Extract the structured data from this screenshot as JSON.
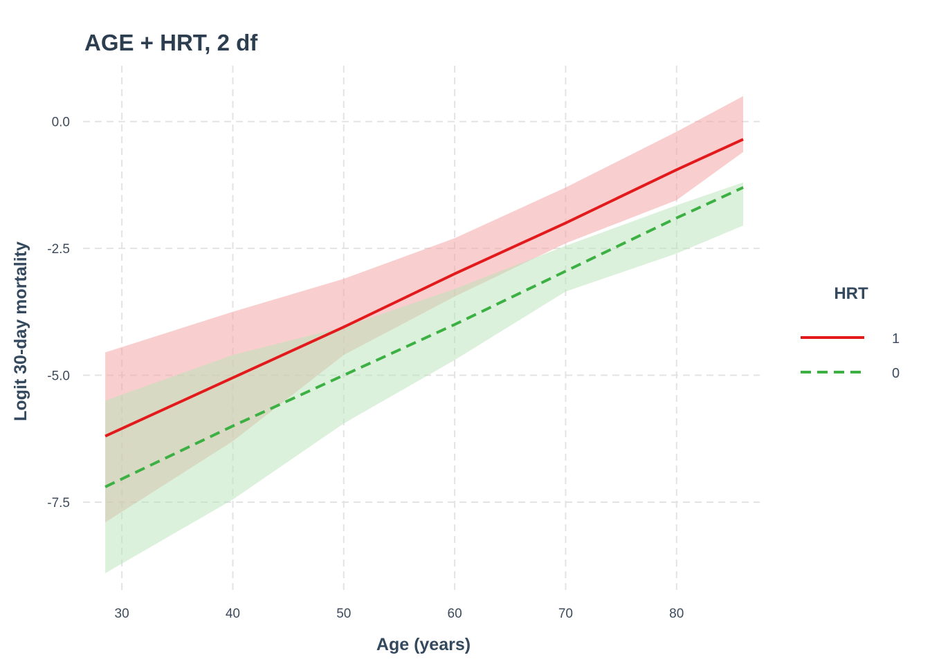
{
  "chart_data": {
    "type": "line",
    "title": "AGE + HRT, 2 df",
    "xlabel": "Age (years)",
    "ylabel": "Logit 30-day mortality",
    "xlim": [
      26.5,
      87.5
    ],
    "ylim": [
      -9.3,
      1.1
    ],
    "xticks": [
      30,
      40,
      50,
      60,
      70,
      80
    ],
    "xtick_labels": [
      "30",
      "40",
      "50",
      "60",
      "70",
      "80"
    ],
    "yticks": [
      0.0,
      -2.5,
      -5.0,
      -7.5
    ],
    "ytick_labels": [
      "0.0",
      "-2.5",
      "-5.0",
      "-7.5"
    ],
    "grid": true,
    "legend": {
      "title": "HRT",
      "position": "right"
    },
    "series": [
      {
        "name": "1",
        "color": "#e31a1c",
        "band_color": "#f4a6a6",
        "linestyle": "solid",
        "x": [
          28.5,
          40,
          50,
          60,
          70,
          80,
          86
        ],
        "y": [
          -6.2,
          -5.05,
          -4.05,
          -3.0,
          -2.0,
          -0.95,
          -0.35
        ],
        "lower": [
          -7.9,
          -6.3,
          -4.6,
          -3.45,
          -2.4,
          -1.55,
          -0.6
        ],
        "upper": [
          -4.55,
          -3.75,
          -3.1,
          -2.3,
          -1.3,
          -0.2,
          0.5
        ]
      },
      {
        "name": "0",
        "color": "#3cb043",
        "band_color": "#b7e4b7",
        "linestyle": "dashed",
        "x": [
          28.5,
          40,
          50,
          60,
          70,
          80,
          86
        ],
        "y": [
          -7.2,
          -6.0,
          -5.0,
          -4.0,
          -2.95,
          -1.9,
          -1.3
        ],
        "lower": [
          -8.9,
          -7.45,
          -5.95,
          -4.7,
          -3.35,
          -2.6,
          -2.05
        ],
        "upper": [
          -5.5,
          -4.6,
          -4.05,
          -3.3,
          -2.45,
          -1.65,
          -1.2
        ]
      }
    ]
  }
}
